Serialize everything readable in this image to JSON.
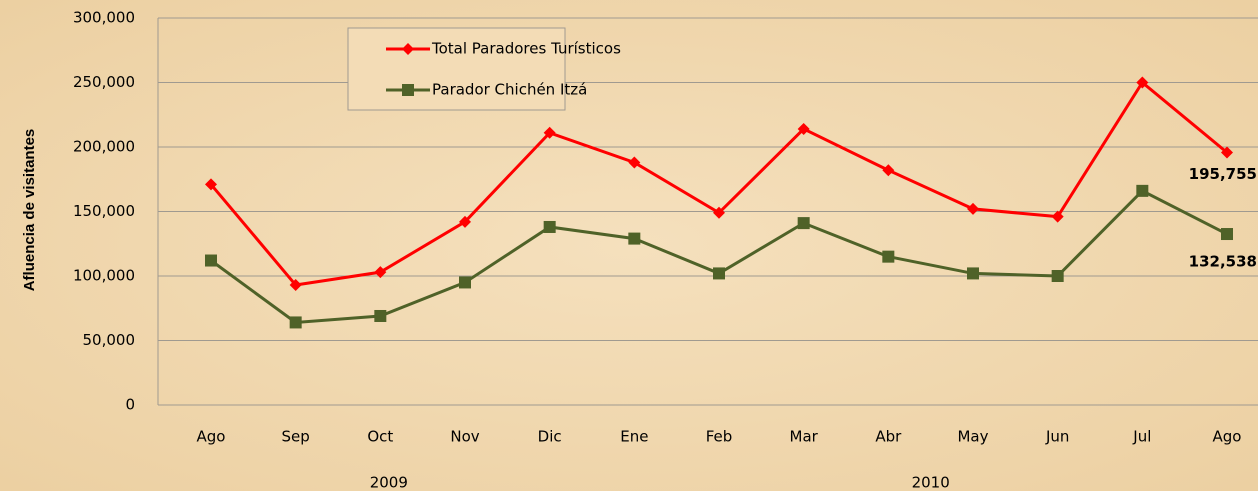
{
  "chart_data": {
    "type": "line",
    "y_axis_label": "Afluencia de visitantes",
    "categories": [
      "Ago",
      "Sep",
      "Oct",
      "Nov",
      "Dic",
      "Ene",
      "Feb",
      "Mar",
      "Abr",
      "May",
      "Jun",
      "Jul",
      "Ago"
    ],
    "year_labels": [
      "2009",
      "2010"
    ],
    "series": [
      {
        "name": "Total Paradores Turísticos",
        "color": "#ff0000",
        "marker": "diamond",
        "values": [
          171000,
          93000,
          103000,
          142000,
          211000,
          188000,
          149000,
          214000,
          182000,
          152000,
          146000,
          250000,
          195755
        ],
        "value_labels": [
          null,
          null,
          null,
          null,
          null,
          null,
          null,
          null,
          null,
          null,
          null,
          null,
          "195,755"
        ]
      },
      {
        "name": "Parador Chichén Itzá",
        "color": "#4f6228",
        "marker": "square",
        "values": [
          112000,
          64000,
          69000,
          95000,
          138000,
          129000,
          102000,
          141000,
          115000,
          102000,
          100000,
          166000,
          132538
        ],
        "value_labels": [
          null,
          null,
          null,
          null,
          null,
          null,
          null,
          null,
          null,
          null,
          null,
          null,
          "132,538"
        ]
      }
    ],
    "ylim": [
      0,
      300000
    ],
    "yticks": [
      0,
      {
        "value": 50000,
        "label": "50,000"
      },
      {
        "value": 100000,
        "label": "100,000"
      },
      {
        "value": 150000,
        "label": "150,000"
      },
      {
        "value": 200000,
        "label": "200,000"
      },
      {
        "value": 250000,
        "label": "250,000"
      },
      {
        "value": 300000,
        "label": "300,000"
      }
    ],
    "grid": true,
    "legend": "top-left"
  }
}
